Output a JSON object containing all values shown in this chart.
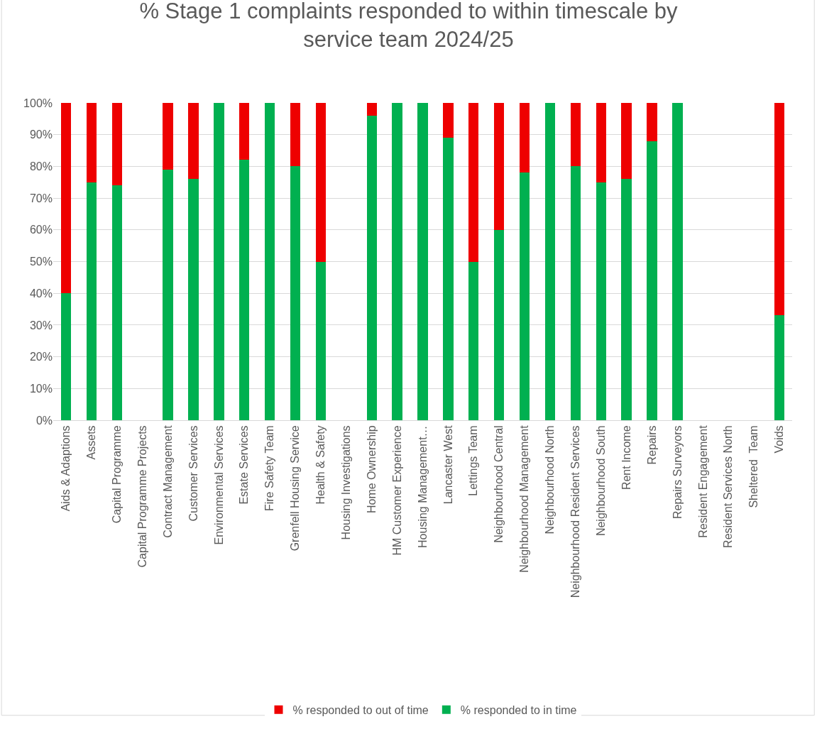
{
  "chart_data": {
    "type": "bar",
    "title": "% Stage 1 complaints responded to within timescale by service team 2024/25",
    "categories": [
      "Aids & Adaptions",
      "Assets",
      "Capital Programme",
      "Capital Programme Projects",
      "Contract Management",
      "Customer Services",
      "Environmental Services",
      "Estate Services",
      "Fire Safety Team",
      "Grenfell Housing Service",
      "Health & Safety",
      "Housing Investigations",
      "Home Ownership",
      "HM Customer Experience",
      "Housing Management…",
      "Lancaster West",
      "Lettings Team",
      "Neighbourhood Central",
      "Neighbourhood Management",
      "Neighbourhood North",
      "Neighbourhood Resident Services",
      "Neighbourhood South",
      "Rent Income",
      "Repairs",
      "Repairs Surveyors",
      "Resident Engagement",
      "Resident Services North",
      "Sheltered  Team",
      "Voids"
    ],
    "series": [
      {
        "name": "% responded to in time",
        "color": "#00b050",
        "values": [
          40,
          75,
          74,
          null,
          79,
          76,
          100,
          82,
          100,
          80,
          50,
          null,
          96,
          100,
          100,
          89,
          50,
          60,
          78,
          100,
          80,
          75,
          76,
          88,
          100,
          null,
          null,
          null,
          33
        ]
      },
      {
        "name": "% responded to out of time",
        "color": "#ee0000",
        "values": [
          60,
          25,
          26,
          null,
          21,
          24,
          0,
          18,
          0,
          20,
          50,
          null,
          4,
          0,
          0,
          11,
          50,
          40,
          22,
          0,
          20,
          25,
          24,
          12,
          0,
          null,
          null,
          null,
          67
        ]
      }
    ],
    "stacked": true,
    "ylim": [
      0,
      100
    ],
    "yticks": [
      {
        "value": 0,
        "label": "0%"
      },
      {
        "value": 10,
        "label": "10%"
      },
      {
        "value": 20,
        "label": "20%"
      },
      {
        "value": 30,
        "label": "30%"
      },
      {
        "value": 40,
        "label": "40%"
      },
      {
        "value": 50,
        "label": "50%"
      },
      {
        "value": 60,
        "label": "60%"
      },
      {
        "value": 70,
        "label": "70%"
      },
      {
        "value": 80,
        "label": "80%"
      },
      {
        "value": 90,
        "label": "90%"
      },
      {
        "value": 100,
        "label": "100%"
      }
    ],
    "grid": "y",
    "legend": "bottom"
  }
}
